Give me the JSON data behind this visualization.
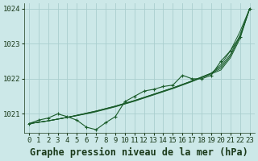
{
  "background_color": "#cce8e8",
  "grid_color": "#aacece",
  "line_color": "#1a5c2a",
  "title": "Graphe pression niveau de la mer (hPa)",
  "xlim": [
    -0.5,
    23.5
  ],
  "ylim": [
    1020.45,
    1024.15
  ],
  "yticks": [
    1021,
    1022,
    1023,
    1024
  ],
  "xticks": [
    0,
    1,
    2,
    3,
    4,
    5,
    6,
    7,
    8,
    9,
    10,
    11,
    12,
    13,
    14,
    15,
    16,
    17,
    18,
    19,
    20,
    21,
    22,
    23
  ],
  "bundle_lines": [
    [
      1020.72,
      1020.76,
      1020.8,
      1020.85,
      1020.9,
      1020.96,
      1021.02,
      1021.08,
      1021.15,
      1021.22,
      1021.3,
      1021.38,
      1021.47,
      1021.56,
      1021.65,
      1021.74,
      1021.84,
      1021.94,
      1022.05,
      1022.16,
      1022.4,
      1022.8,
      1023.35,
      1024.0
    ],
    [
      1020.72,
      1020.76,
      1020.8,
      1020.85,
      1020.9,
      1020.96,
      1021.02,
      1021.08,
      1021.15,
      1021.22,
      1021.3,
      1021.38,
      1021.47,
      1021.56,
      1021.65,
      1021.74,
      1021.84,
      1021.94,
      1022.05,
      1022.16,
      1022.35,
      1022.7,
      1023.25,
      1024.0
    ],
    [
      1020.72,
      1020.76,
      1020.8,
      1020.85,
      1020.9,
      1020.95,
      1021.01,
      1021.07,
      1021.14,
      1021.21,
      1021.29,
      1021.37,
      1021.46,
      1021.55,
      1021.64,
      1021.73,
      1021.83,
      1021.93,
      1022.04,
      1022.15,
      1022.3,
      1022.65,
      1023.2,
      1024.0
    ],
    [
      1020.72,
      1020.76,
      1020.8,
      1020.85,
      1020.9,
      1020.95,
      1021.0,
      1021.06,
      1021.13,
      1021.2,
      1021.28,
      1021.36,
      1021.45,
      1021.54,
      1021.63,
      1021.72,
      1021.82,
      1021.92,
      1022.03,
      1022.14,
      1022.25,
      1022.6,
      1023.15,
      1024.0
    ]
  ],
  "marker_line": [
    1020.72,
    1020.82,
    1020.88,
    1021.0,
    1020.92,
    1020.82,
    1020.62,
    1020.55,
    1020.75,
    1020.92,
    1021.35,
    1021.5,
    1021.65,
    1021.7,
    1021.78,
    1021.82,
    1022.1,
    1022.0,
    1022.0,
    1022.1,
    1022.5,
    1022.8,
    1023.2,
    1024.0
  ],
  "title_fontsize": 8.5,
  "tick_fontsize": 6.5
}
